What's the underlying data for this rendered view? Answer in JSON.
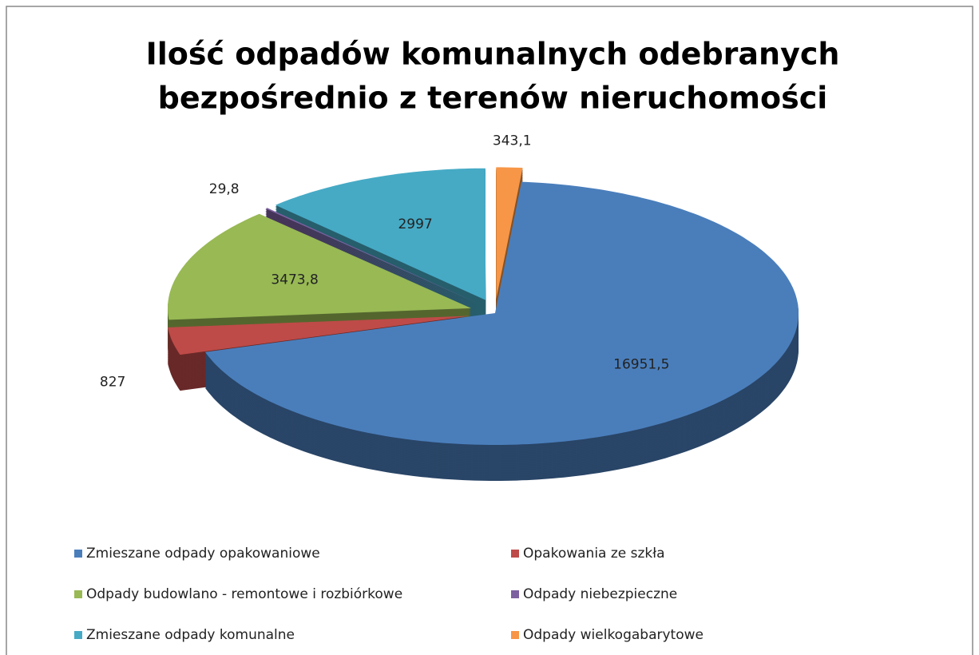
{
  "chart_data": {
    "type": "pie3d",
    "title": [
      "Ilość odpadów komunalnych odebranych",
      "bezpośrednio z terenów nieruchomości"
    ],
    "categories": [
      "Zmieszane odpady opakowaniowe",
      "Opakowania ze szkła",
      "Odpady budowlano - remontowe i rozbiórkowe",
      "Odpady niebezpieczne",
      "Zmieszane odpady komunalne",
      "Odpady wielkogabarytowe"
    ],
    "values": [
      16951.5,
      827,
      3473.8,
      29.8,
      2997,
      343.1
    ],
    "value_labels": [
      "16951,5",
      "827",
      "3473,8",
      "29,8",
      "2997",
      "343,1"
    ],
    "colors": [
      "#4a7ebb",
      "#be4b48",
      "#98b954",
      "#7d60a0",
      "#46aac5",
      "#f79646"
    ],
    "legend": "bottom"
  }
}
